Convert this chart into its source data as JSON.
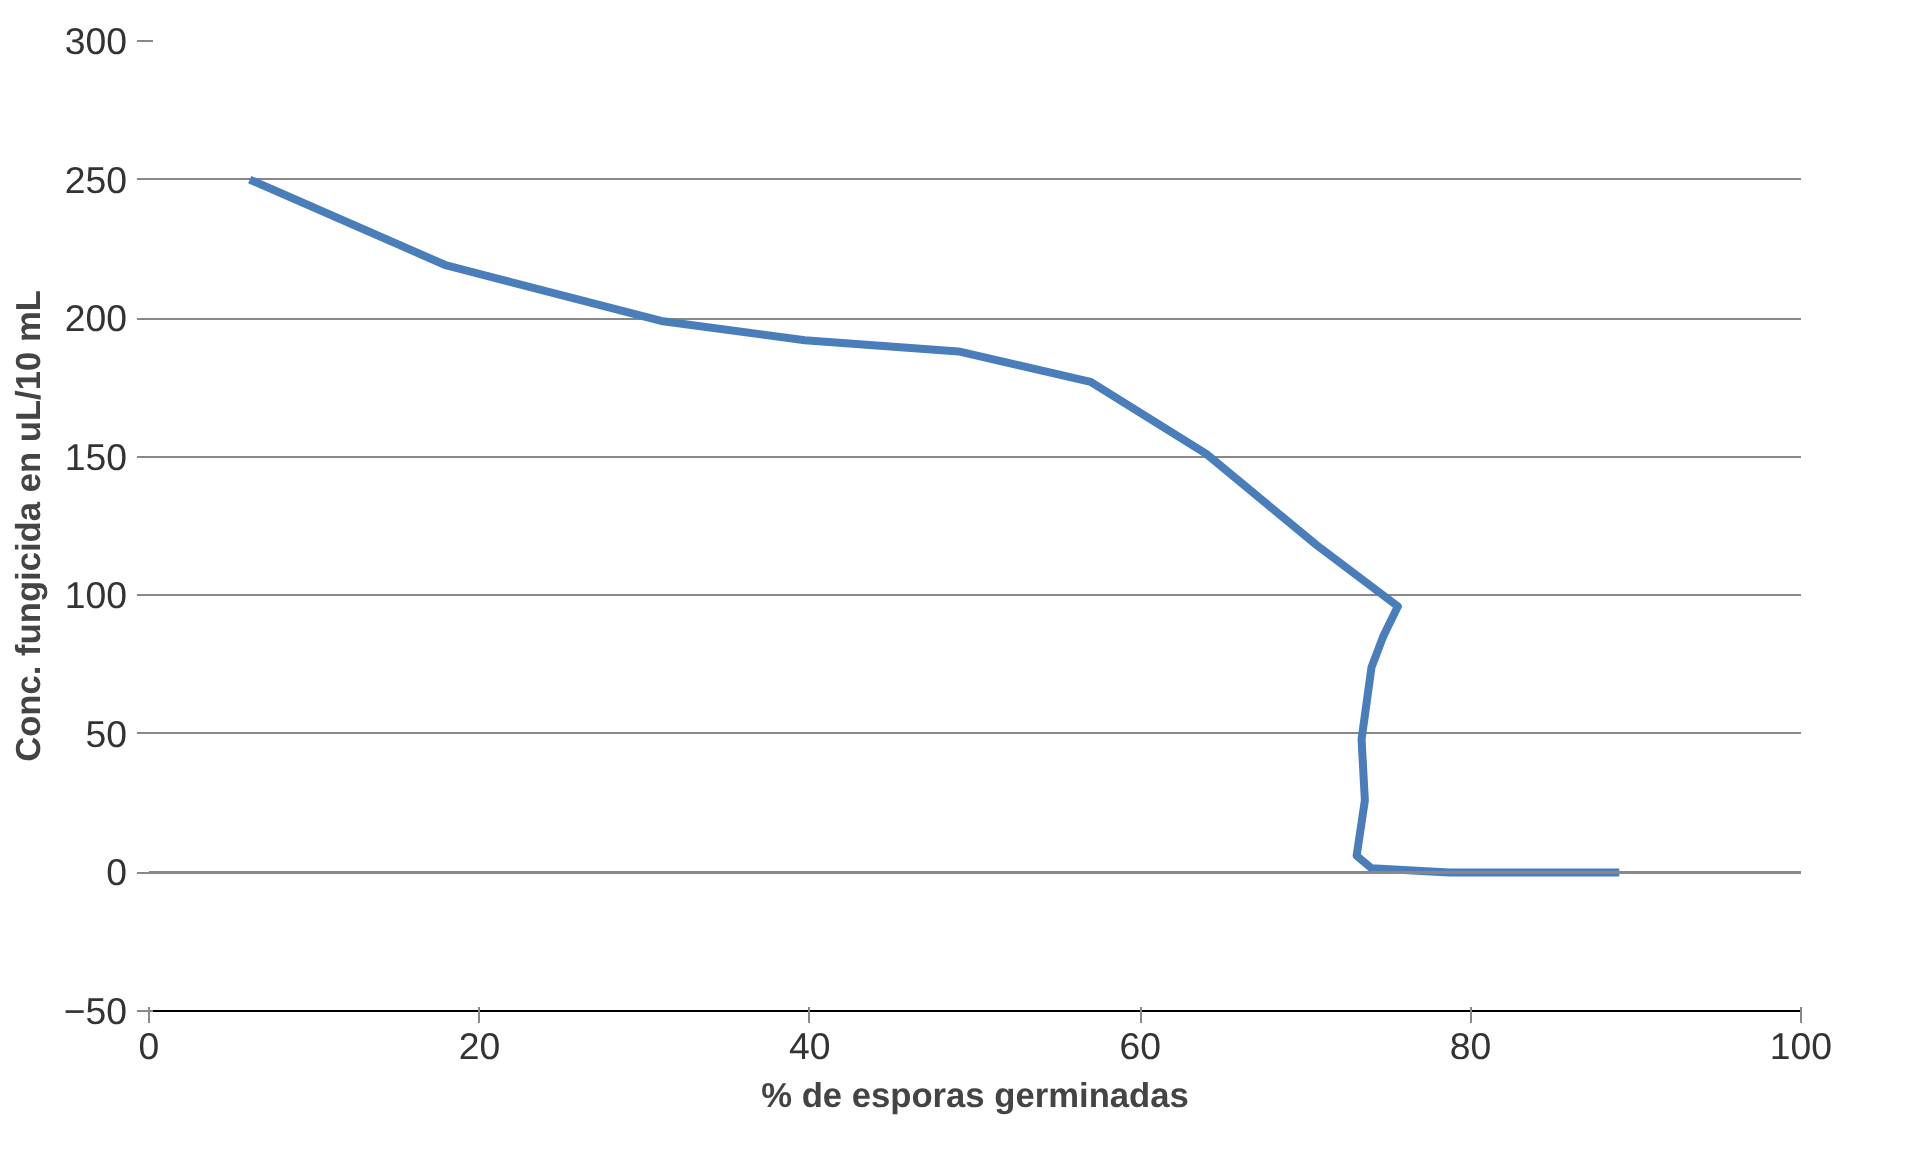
{
  "chart_data": {
    "type": "line",
    "xlabel": "% de esporas germinadas",
    "ylabel": "Conc. fungicida en uL/10 mL",
    "x": [
      6.1,
      18,
      31,
      39.7,
      49,
      57,
      64,
      70.7,
      75.6,
      74.7,
      74,
      73.4,
      73.6,
      73.1,
      74,
      78.7,
      89
    ],
    "series": [
      {
        "color": "#4a7ebb",
        "values": [
          250,
          219,
          199,
          192,
          188,
          177,
          151,
          118,
          96,
          85,
          74,
          48,
          26,
          6,
          1.5,
          0,
          0
        ]
      }
    ],
    "xlim": [
      0,
      100
    ],
    "xticks": [
      0,
      20,
      40,
      60,
      80,
      100
    ],
    "ylim": [
      -50,
      300
    ],
    "yticks": [
      -50,
      0,
      50,
      100,
      150,
      200,
      250,
      300
    ],
    "grid": "y",
    "marker": "none",
    "line_style": "solid"
  }
}
